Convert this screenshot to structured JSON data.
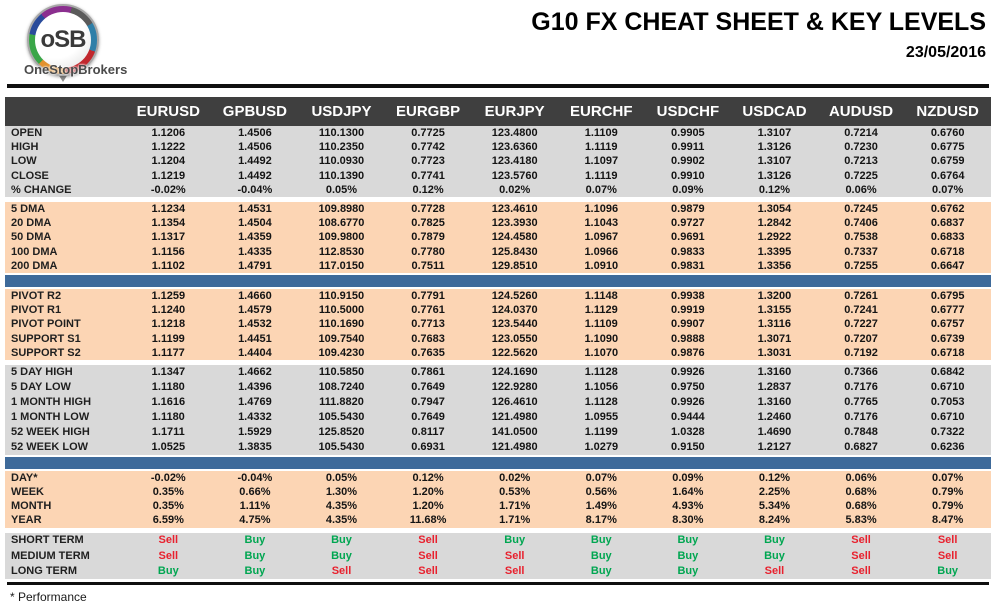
{
  "header": {
    "logo": {
      "acronym": "oSB",
      "brand": "OneStopBrokers"
    },
    "title": "G10 FX CHEAT SHEET & KEY LEVELS",
    "date": "23/05/2016"
  },
  "colors": {
    "header_bg": "#3f3f3f",
    "gray_bg": "#d9d9d9",
    "peach_bg": "#fcd5b4",
    "blue_bar": "#3e6a9a",
    "buy_green": "#00a651",
    "sell_red": "#e8212e",
    "pivot_navy": "#17365d"
  },
  "footnote": "* Performance",
  "table": {
    "columns": [
      "EURUSD",
      "GPBUSD",
      "USDJPY",
      "EURGBP",
      "EURJPY",
      "EURCHF",
      "USDCHF",
      "USDCAD",
      "AUDUSD",
      "NZDUSD"
    ],
    "sections": [
      {
        "name": "ohlc",
        "bg": "gray",
        "separator": "none",
        "rows": [
          {
            "label": "OPEN",
            "values": [
              "1.1206",
              "1.4506",
              "110.1300",
              "0.7725",
              "123.4800",
              "1.1109",
              "0.9905",
              "1.3107",
              "0.7214",
              "0.6760"
            ]
          },
          {
            "label": "HIGH",
            "values": [
              "1.1222",
              "1.4506",
              "110.2350",
              "0.7742",
              "123.6360",
              "1.1119",
              "0.9911",
              "1.3126",
              "0.7230",
              "0.6775"
            ]
          },
          {
            "label": "LOW",
            "values": [
              "1.1204",
              "1.4492",
              "110.0930",
              "0.7723",
              "123.4180",
              "1.1097",
              "0.9902",
              "1.3107",
              "0.7213",
              "0.6759"
            ]
          },
          {
            "label": "CLOSE",
            "values": [
              "1.1219",
              "1.4492",
              "110.1390",
              "0.7741",
              "123.5760",
              "1.1119",
              "0.9910",
              "1.3126",
              "0.7225",
              "0.6764"
            ]
          },
          {
            "label": "% CHANGE",
            "values": [
              "-0.02%",
              "-0.04%",
              "0.05%",
              "0.12%",
              "0.02%",
              "0.07%",
              "0.09%",
              "0.12%",
              "0.06%",
              "0.07%"
            ]
          }
        ]
      },
      {
        "name": "dma",
        "bg": "peach",
        "separator": "gap",
        "rows": [
          {
            "label": "5 DMA",
            "values": [
              "1.1234",
              "1.4531",
              "109.8980",
              "0.7728",
              "123.4610",
              "1.1096",
              "0.9879",
              "1.3054",
              "0.7245",
              "0.6762"
            ]
          },
          {
            "label": "20 DMA",
            "values": [
              "1.1354",
              "1.4504",
              "108.6770",
              "0.7825",
              "123.3930",
              "1.1043",
              "0.9727",
              "1.2842",
              "0.7406",
              "0.6837"
            ]
          },
          {
            "label": "50 DMA",
            "values": [
              "1.1317",
              "1.4359",
              "109.9800",
              "0.7879",
              "124.4580",
              "1.0967",
              "0.9691",
              "1.2922",
              "0.7538",
              "0.6833"
            ]
          },
          {
            "label": "100 DMA",
            "values": [
              "1.1156",
              "1.4335",
              "112.8530",
              "0.7780",
              "125.8430",
              "1.0966",
              "0.9833",
              "1.3395",
              "0.7337",
              "0.6718"
            ]
          },
          {
            "label": "200 DMA",
            "values": [
              "1.1102",
              "1.4791",
              "117.0150",
              "0.7511",
              "129.8510",
              "1.0910",
              "0.9831",
              "1.3356",
              "0.7255",
              "0.6647"
            ]
          }
        ]
      },
      {
        "name": "pivots",
        "bg": "peach",
        "separator": "blue",
        "rows": [
          {
            "label": "PIVOT R2",
            "label_style": "green",
            "values": [
              "1.1259",
              "1.4660",
              "110.9150",
              "0.7791",
              "124.5260",
              "1.1148",
              "0.9938",
              "1.3200",
              "0.7261",
              "0.6795"
            ]
          },
          {
            "label": "PIVOT R1",
            "label_style": "green",
            "values": [
              "1.1240",
              "1.4579",
              "110.5000",
              "0.7761",
              "124.0370",
              "1.1129",
              "0.9919",
              "1.3155",
              "0.7241",
              "0.6777"
            ]
          },
          {
            "label": "PIVOT POINT",
            "label_style": "navy",
            "values": [
              "1.1218",
              "1.4532",
              "110.1690",
              "0.7713",
              "123.5440",
              "1.1109",
              "0.9907",
              "1.3116",
              "0.7227",
              "0.6757"
            ]
          },
          {
            "label": "SUPPORT S1",
            "label_style": "red",
            "values": [
              "1.1199",
              "1.4451",
              "109.7540",
              "0.7683",
              "123.0550",
              "1.1090",
              "0.9888",
              "1.3071",
              "0.7207",
              "0.6739"
            ]
          },
          {
            "label": "SUPPORT S2",
            "label_style": "red",
            "values": [
              "1.1177",
              "1.4404",
              "109.4230",
              "0.7635",
              "122.5620",
              "1.1070",
              "0.9876",
              "1.3031",
              "0.7192",
              "0.6718"
            ]
          }
        ]
      },
      {
        "name": "ranges",
        "bg": "gray",
        "separator": "gap",
        "rows": [
          {
            "label": "5 DAY HIGH",
            "values": [
              "1.1347",
              "1.4662",
              "110.5850",
              "0.7861",
              "124.1690",
              "1.1128",
              "0.9926",
              "1.3160",
              "0.7366",
              "0.6842"
            ]
          },
          {
            "label": "5 DAY LOW",
            "values": [
              "1.1180",
              "1.4396",
              "108.7240",
              "0.7649",
              "122.9280",
              "1.1056",
              "0.9750",
              "1.2837",
              "0.7176",
              "0.6710"
            ]
          },
          {
            "label": "1 MONTH HIGH",
            "values": [
              "1.1616",
              "1.4769",
              "111.8820",
              "0.7947",
              "126.4610",
              "1.1128",
              "0.9926",
              "1.3160",
              "0.7765",
              "0.7053"
            ]
          },
          {
            "label": "1 MONTH LOW",
            "values": [
              "1.1180",
              "1.4332",
              "105.5430",
              "0.7649",
              "121.4980",
              "1.0955",
              "0.9444",
              "1.2460",
              "0.7176",
              "0.6710"
            ]
          },
          {
            "label": "52 WEEK HIGH",
            "values": [
              "1.1711",
              "1.5929",
              "125.8520",
              "0.8117",
              "141.0500",
              "1.1199",
              "1.0328",
              "1.4690",
              "0.7848",
              "0.7322"
            ]
          },
          {
            "label": "52 WEEK LOW",
            "values": [
              "1.0525",
              "1.3835",
              "105.5430",
              "0.6931",
              "121.4980",
              "1.0279",
              "0.9150",
              "1.2127",
              "0.6827",
              "0.6236"
            ]
          }
        ]
      },
      {
        "name": "performance",
        "bg": "peach",
        "separator": "blue",
        "rows": [
          {
            "label": "DAY*",
            "values": [
              "-0.02%",
              "-0.04%",
              "0.05%",
              "0.12%",
              "0.02%",
              "0.07%",
              "0.09%",
              "0.12%",
              "0.06%",
              "0.07%"
            ]
          },
          {
            "label": "WEEK",
            "values": [
              "0.35%",
              "0.66%",
              "1.30%",
              "1.20%",
              "0.53%",
              "0.56%",
              "1.64%",
              "2.25%",
              "0.68%",
              "0.79%"
            ]
          },
          {
            "label": "MONTH",
            "values": [
              "0.35%",
              "1.11%",
              "4.35%",
              "1.20%",
              "1.71%",
              "1.49%",
              "4.93%",
              "5.34%",
              "0.68%",
              "0.79%"
            ]
          },
          {
            "label": "YEAR",
            "values": [
              "6.59%",
              "4.75%",
              "4.35%",
              "11.68%",
              "1.71%",
              "8.17%",
              "8.30%",
              "8.24%",
              "5.83%",
              "8.47%"
            ]
          }
        ]
      },
      {
        "name": "signals",
        "bg": "gray",
        "separator": "gap",
        "colored_values": true,
        "rows": [
          {
            "label": "SHORT TERM",
            "values": [
              "Sell",
              "Buy",
              "Buy",
              "Sell",
              "Buy",
              "Buy",
              "Buy",
              "Buy",
              "Sell",
              "Sell"
            ]
          },
          {
            "label": "MEDIUM TERM",
            "values": [
              "Sell",
              "Buy",
              "Buy",
              "Sell",
              "Sell",
              "Buy",
              "Buy",
              "Buy",
              "Sell",
              "Sell"
            ]
          },
          {
            "label": "LONG TERM",
            "values": [
              "Buy",
              "Buy",
              "Sell",
              "Sell",
              "Sell",
              "Buy",
              "Buy",
              "Sell",
              "Sell",
              "Buy"
            ]
          }
        ]
      }
    ]
  }
}
